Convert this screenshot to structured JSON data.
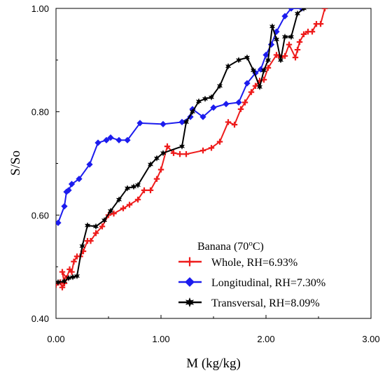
{
  "chart_data": {
    "type": "line",
    "xlabel": "M (kg/kg)",
    "ylabel": "S/So",
    "xlim": [
      0,
      3
    ],
    "ylim": [
      0.4,
      1.0
    ],
    "x_ticks": [
      "0.00",
      "1.00",
      "2.00",
      "3.00"
    ],
    "y_ticks": [
      "0.40",
      "0.60",
      "0.80",
      "1.00"
    ],
    "grid": false,
    "legend": {
      "placement": "bottom-right",
      "title_main": "Banana (70",
      "title_sup": "o",
      "title_end": "C)"
    },
    "series": [
      {
        "name": "Whole, RH=6.93%",
        "color": "#ee1c1c",
        "marker": "plus",
        "points": [
          [
            0.0,
            0.465
          ],
          [
            0.04,
            0.47
          ],
          [
            0.06,
            0.46
          ],
          [
            0.08,
            0.468
          ],
          [
            0.06,
            0.49
          ],
          [
            0.1,
            0.478
          ],
          [
            0.13,
            0.495
          ],
          [
            0.15,
            0.49
          ],
          [
            0.17,
            0.51
          ],
          [
            0.2,
            0.52
          ],
          [
            0.23,
            0.52
          ],
          [
            0.26,
            0.53
          ],
          [
            0.3,
            0.55
          ],
          [
            0.33,
            0.55
          ],
          [
            0.38,
            0.565
          ],
          [
            0.44,
            0.578
          ],
          [
            0.5,
            0.6
          ],
          [
            0.55,
            0.603
          ],
          [
            0.64,
            0.613
          ],
          [
            0.7,
            0.62
          ],
          [
            0.78,
            0.63
          ],
          [
            0.84,
            0.648
          ],
          [
            0.9,
            0.648
          ],
          [
            0.96,
            0.67
          ],
          [
            1.0,
            0.688
          ],
          [
            1.06,
            0.733
          ],
          [
            1.12,
            0.72
          ],
          [
            1.18,
            0.718
          ],
          [
            1.24,
            0.718
          ],
          [
            1.4,
            0.725
          ],
          [
            1.48,
            0.73
          ],
          [
            1.56,
            0.742
          ],
          [
            1.64,
            0.78
          ],
          [
            1.7,
            0.775
          ],
          [
            1.76,
            0.805
          ],
          [
            1.8,
            0.818
          ],
          [
            1.86,
            0.838
          ],
          [
            1.9,
            0.85
          ],
          [
            1.94,
            0.86
          ],
          [
            1.98,
            0.862
          ],
          [
            2.02,
            0.885
          ],
          [
            2.1,
            0.91
          ],
          [
            2.14,
            0.905
          ],
          [
            2.18,
            0.908
          ],
          [
            2.22,
            0.93
          ],
          [
            2.28,
            0.905
          ],
          [
            2.3,
            0.92
          ],
          [
            2.32,
            0.935
          ],
          [
            2.36,
            0.95
          ],
          [
            2.4,
            0.955
          ],
          [
            2.44,
            0.955
          ],
          [
            2.48,
            0.97
          ],
          [
            2.52,
            0.97
          ],
          [
            2.56,
            1.0
          ]
        ]
      },
      {
        "name": "Longitudinal, RH=7.30%",
        "color": "#1c1cee",
        "marker": "diamond",
        "points": [
          [
            0.02,
            0.585
          ],
          [
            0.08,
            0.617
          ],
          [
            0.1,
            0.645
          ],
          [
            0.12,
            0.648
          ],
          [
            0.15,
            0.66
          ],
          [
            0.22,
            0.67
          ],
          [
            0.32,
            0.698
          ],
          [
            0.4,
            0.74
          ],
          [
            0.48,
            0.745
          ],
          [
            0.52,
            0.75
          ],
          [
            0.6,
            0.745
          ],
          [
            0.68,
            0.745
          ],
          [
            0.8,
            0.778
          ],
          [
            1.02,
            0.776
          ],
          [
            1.2,
            0.78
          ],
          [
            1.28,
            0.79
          ],
          [
            1.3,
            0.805
          ],
          [
            1.4,
            0.79
          ],
          [
            1.5,
            0.808
          ],
          [
            1.62,
            0.815
          ],
          [
            1.74,
            0.818
          ],
          [
            1.82,
            0.855
          ],
          [
            1.9,
            0.875
          ],
          [
            1.95,
            0.882
          ],
          [
            2.0,
            0.91
          ],
          [
            2.05,
            0.93
          ],
          [
            2.1,
            0.955
          ],
          [
            2.18,
            0.985
          ],
          [
            2.24,
            1.0
          ],
          [
            2.34,
            1.0
          ]
        ]
      },
      {
        "name": "Transversal, RH=8.09%",
        "color": "#000000",
        "marker": "star",
        "points": [
          [
            0.02,
            0.47
          ],
          [
            0.08,
            0.472
          ],
          [
            0.12,
            0.478
          ],
          [
            0.16,
            0.48
          ],
          [
            0.2,
            0.482
          ],
          [
            0.25,
            0.54
          ],
          [
            0.3,
            0.58
          ],
          [
            0.38,
            0.578
          ],
          [
            0.46,
            0.59
          ],
          [
            0.52,
            0.608
          ],
          [
            0.6,
            0.63
          ],
          [
            0.68,
            0.652
          ],
          [
            0.74,
            0.655
          ],
          [
            0.78,
            0.658
          ],
          [
            0.9,
            0.698
          ],
          [
            0.96,
            0.71
          ],
          [
            1.02,
            0.72
          ],
          [
            1.2,
            0.733
          ],
          [
            1.24,
            0.78
          ],
          [
            1.3,
            0.8
          ],
          [
            1.36,
            0.82
          ],
          [
            1.42,
            0.825
          ],
          [
            1.48,
            0.828
          ],
          [
            1.56,
            0.85
          ],
          [
            1.64,
            0.888
          ],
          [
            1.74,
            0.9
          ],
          [
            1.82,
            0.905
          ],
          [
            1.88,
            0.88
          ],
          [
            1.94,
            0.848
          ],
          [
            1.98,
            0.88
          ],
          [
            2.02,
            0.9
          ],
          [
            2.06,
            0.965
          ],
          [
            2.1,
            0.94
          ],
          [
            2.14,
            0.9
          ],
          [
            2.18,
            0.945
          ],
          [
            2.24,
            0.945
          ],
          [
            2.3,
            0.99
          ],
          [
            2.36,
            1.0
          ]
        ]
      }
    ]
  }
}
